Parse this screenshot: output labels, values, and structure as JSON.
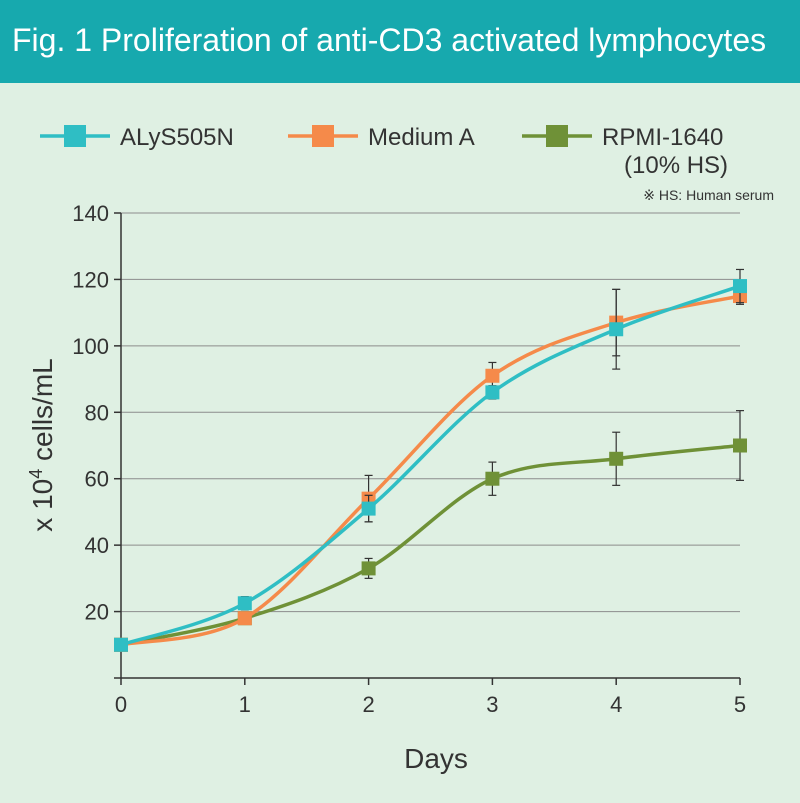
{
  "header": {
    "title": "Fig. 1 Proliferation of anti-CD3 activated lymphocytes"
  },
  "colors": {
    "header_bg": "#17a9ae",
    "background": "#dff0e3"
  },
  "chart_data": {
    "type": "line",
    "xlabel": "Days",
    "ylabel_prefix": "x 10",
    "ylabel_superscript": "4",
    "ylabel_suffix": " cells/mL",
    "xlim": [
      0,
      5
    ],
    "ylim": [
      0,
      140
    ],
    "x_ticks": [
      0,
      1,
      2,
      3,
      4,
      5
    ],
    "y_ticks": [
      20,
      40,
      60,
      80,
      100,
      120,
      140
    ],
    "grid": "horizontal",
    "legend_position": "top",
    "note": "※ HS: Human serum",
    "x": [
      0,
      1,
      2,
      3,
      4,
      5
    ],
    "series": [
      {
        "name": "ALyS505N",
        "color": "#2fbec4",
        "values": [
          10,
          22.5,
          51,
          86,
          105,
          118
        ],
        "error": [
          0,
          2,
          4,
          2,
          12,
          5
        ]
      },
      {
        "name": "Medium A",
        "color": "#f58a4a",
        "values": [
          10,
          18,
          54,
          91,
          107,
          115
        ],
        "error": [
          0,
          1.5,
          7,
          4,
          10,
          2.5
        ]
      },
      {
        "name": "RPMI-1640",
        "name_line2": "(10% HS)",
        "color": "#6f9137",
        "values": [
          10,
          18,
          33,
          60,
          66,
          70
        ],
        "error": [
          0,
          1.5,
          3,
          5,
          8,
          10.5
        ]
      }
    ]
  }
}
